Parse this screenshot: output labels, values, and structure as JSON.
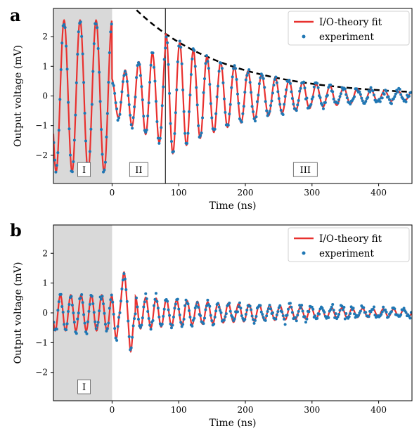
{
  "chart_data": [
    {
      "panel": "a",
      "type": "line",
      "xlabel": "Time (ns)",
      "ylabel": "Output voltage (mV)",
      "xlim": [
        -88,
        450
      ],
      "ylim": [
        -2.95,
        2.95
      ],
      "xticks": [
        0,
        100,
        200,
        300,
        400
      ],
      "yticks": [
        -2,
        -1,
        0,
        1,
        2
      ],
      "grid": false,
      "legend": {
        "placement": "top-right",
        "entries": [
          {
            "label": "I/O-theory fit",
            "color": "#e8312f",
            "marker": "line"
          },
          {
            "label": "experiment",
            "color": "#1f77b4",
            "marker": "dot"
          }
        ]
      },
      "shaded_region": {
        "x": [
          -88,
          0
        ],
        "color": "#d9d9d9"
      },
      "vlines": [
        80
      ],
      "region_labels": [
        {
          "text": "I",
          "x": -42,
          "y": -2.48
        },
        {
          "text": "II",
          "x": 40,
          "y": -2.48
        },
        {
          "text": "III",
          "x": 290,
          "y": -2.48
        }
      ],
      "envelope": {
        "style": "dashed",
        "color": "#000000",
        "x": [
          27,
          450
        ],
        "A0": 3.8,
        "x0": 0,
        "tau": 135
      },
      "signal_model": {
        "drive": {
          "x": [
            -88,
            0
          ],
          "amplitude": 2.55,
          "period_ns": 24,
          "phase": 1.5708
        },
        "transient": {
          "x": [
            0,
            80
          ],
          "start_amplitude": 0.6,
          "end_amplitude": 1.7,
          "period_ns": 20.5
        },
        "ringdown": {
          "x": [
            80,
            450
          ],
          "amplitude_at_80": 2.1,
          "tau_ns": 135,
          "period_ns": 20.5
        }
      },
      "series": [
        {
          "name": "I/O-theory fit",
          "color": "#e8312f"
        },
        {
          "name": "experiment",
          "color": "#1f77b4"
        }
      ]
    },
    {
      "panel": "b",
      "type": "line",
      "xlabel": "Time (ns)",
      "ylabel": "Output voltage (mV)",
      "xlim": [
        -88,
        450
      ],
      "ylim": [
        -2.95,
        2.95
      ],
      "xticks": [
        0,
        100,
        200,
        300,
        400
      ],
      "yticks": [
        -2,
        -1,
        0,
        1,
        2
      ],
      "grid": false,
      "legend": {
        "placement": "top-right",
        "entries": [
          {
            "label": "I/O-theory fit",
            "color": "#e8312f",
            "marker": "line"
          },
          {
            "label": "experiment",
            "color": "#1f77b4",
            "marker": "dot"
          }
        ]
      },
      "shaded_region": {
        "x": [
          -88,
          0
        ],
        "color": "#d9d9d9"
      },
      "vlines": [],
      "region_labels": [
        {
          "text": "I",
          "x": -42,
          "y": -2.48
        }
      ],
      "signal_model": {
        "drive": {
          "x": [
            -88,
            0
          ],
          "amplitude": 0.6,
          "period_ns": 15.5,
          "phase": 1.5708
        },
        "transient": {
          "peak_max": 1.35,
          "peak_max_x": 18,
          "peak_min": -1.3,
          "peak_min_x": 28
        },
        "ringdown": {
          "x": [
            35,
            450
          ],
          "amplitude_at_35": 0.55,
          "tau_ns": 260,
          "period_ns": 15.5
        }
      },
      "series": [
        {
          "name": "I/O-theory fit",
          "color": "#e8312f"
        },
        {
          "name": "experiment",
          "color": "#1f77b4"
        }
      ]
    }
  ],
  "figure": {
    "panel_a_letter": "a",
    "panel_b_letter": "b"
  }
}
